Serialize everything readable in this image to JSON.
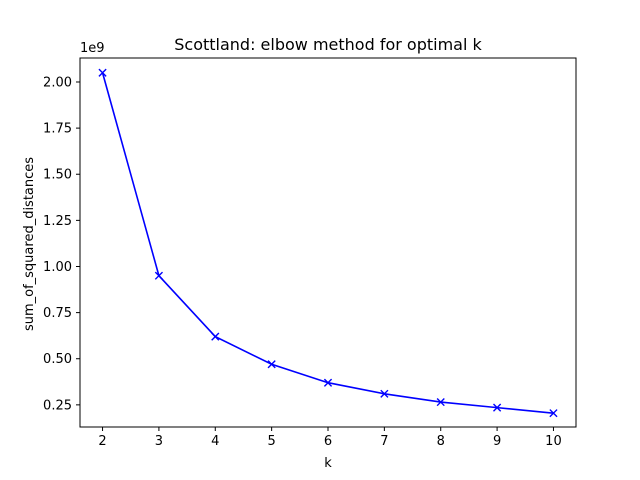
{
  "chart_data": {
    "type": "line",
    "title": "Scottland: elbow method for optimal k",
    "xlabel": "k",
    "ylabel": "sum_of_squared_distances",
    "scale_label": "1e9",
    "x": [
      2,
      3,
      4,
      5,
      6,
      7,
      8,
      9,
      10
    ],
    "xticks": [
      "2",
      "3",
      "4",
      "5",
      "6",
      "7",
      "8",
      "9",
      "10"
    ],
    "yticks": [
      "0.25",
      "0.50",
      "0.75",
      "1.00",
      "1.25",
      "1.50",
      "1.75",
      "2.00"
    ],
    "ytick_values": [
      0.25,
      0.5,
      0.75,
      1.0,
      1.25,
      1.5,
      1.75,
      2.0
    ],
    "series": [
      {
        "values": [
          2.05,
          0.95,
          0.62,
          0.47,
          0.37,
          0.31,
          0.265,
          0.235,
          0.205
        ],
        "color": "#0000ff",
        "marker": "x"
      }
    ],
    "xlim": [
      1.6,
      10.4
    ],
    "ylim": [
      0.13,
      2.13
    ],
    "grid": false,
    "legend": "none"
  }
}
